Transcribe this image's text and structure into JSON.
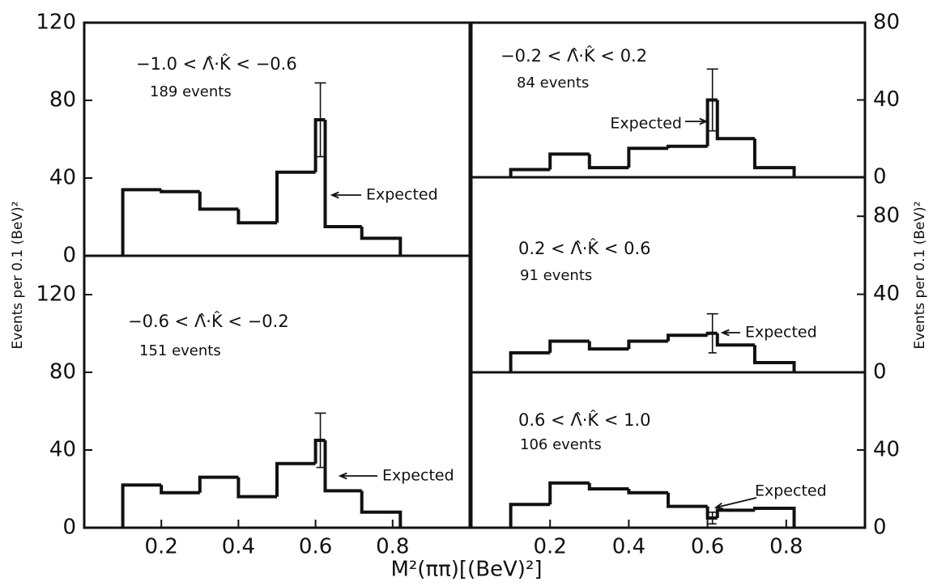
{
  "x_label": "M²(ππ)[(BeV)²]",
  "y_label": "Events per 0.1 (BeV)²",
  "chart_data": [
    {
      "type": "histogram",
      "title": "−1.0 < Λ̂·K̂ < −0.6",
      "subtitle": "189 events",
      "annotation": "Expected",
      "y_axis_side": "left",
      "color": "#111111",
      "bins": [
        0.1,
        0.2,
        0.3,
        0.4,
        0.5,
        0.6,
        0.625,
        0.72,
        0.82
      ],
      "counts": [
        34,
        33,
        24,
        17,
        43,
        70,
        15,
        9
      ],
      "errors": [
        null,
        null,
        null,
        null,
        null,
        19,
        null,
        null
      ],
      "xlim": [
        0,
        1
      ],
      "ylim": [
        0,
        120
      ],
      "yticks": [
        0,
        40,
        80,
        120
      ]
    },
    {
      "type": "histogram",
      "title": "−0.6 < Λ̂·K̂ < −0.2",
      "subtitle": "151 events",
      "annotation": "Expected",
      "y_axis_side": "left",
      "color": "#111111",
      "bins": [
        0.1,
        0.2,
        0.3,
        0.4,
        0.5,
        0.6,
        0.625,
        0.72,
        0.82
      ],
      "counts": [
        22,
        18,
        26,
        16,
        33,
        45,
        19,
        8
      ],
      "errors": [
        null,
        null,
        null,
        null,
        null,
        14,
        null,
        null
      ],
      "xlim": [
        0,
        1
      ],
      "xticks": [
        0.2,
        0.4,
        0.6,
        0.8
      ],
      "ylim": [
        0,
        140
      ],
      "yticks": [
        0,
        40,
        80,
        120
      ]
    },
    {
      "type": "histogram",
      "title": "−0.2 < Λ̂·K̂ < 0.2",
      "subtitle": "84 events",
      "annotation": "Expected",
      "y_axis_side": "right",
      "color": "#111111",
      "bins": [
        0.1,
        0.2,
        0.3,
        0.4,
        0.5,
        0.6,
        0.625,
        0.72,
        0.82
      ],
      "counts": [
        4,
        12,
        5,
        15,
        16,
        40,
        20,
        5
      ],
      "errors": [
        null,
        null,
        null,
        null,
        null,
        16,
        null,
        null
      ],
      "xlim": [
        0,
        1
      ],
      "ylim": [
        0,
        80
      ],
      "yticks": [
        0,
        40,
        80
      ]
    },
    {
      "type": "histogram",
      "title": "0.2 < Λ̂·K̂ < 0.6",
      "subtitle": "91 events",
      "annotation": "Expected",
      "y_axis_side": "right",
      "color": "#111111",
      "bins": [
        0.1,
        0.2,
        0.3,
        0.4,
        0.5,
        0.6,
        0.625,
        0.72,
        0.82
      ],
      "counts": [
        10,
        16,
        12,
        16,
        19,
        20,
        14,
        5
      ],
      "errors": [
        null,
        null,
        null,
        null,
        null,
        10,
        null,
        null
      ],
      "xlim": [
        0,
        1
      ],
      "ylim": [
        0,
        100
      ],
      "yticks": [
        0,
        40,
        80
      ]
    },
    {
      "type": "histogram",
      "title": "0.6 < Λ̂·K̂ < 1.0",
      "subtitle": "106 events",
      "annotation": "Expected",
      "y_axis_side": "right",
      "color": "#111111",
      "bins": [
        0.1,
        0.2,
        0.3,
        0.4,
        0.5,
        0.6,
        0.625,
        0.72,
        0.82
      ],
      "counts": [
        12,
        23,
        20,
        18,
        11,
        5,
        9,
        10
      ],
      "errors": [
        null,
        null,
        null,
        null,
        null,
        3,
        null,
        null
      ],
      "xlim": [
        0,
        1
      ],
      "xticks": [
        0.2,
        0.4,
        0.6,
        0.8
      ],
      "ylim": [
        0,
        80
      ],
      "yticks": [
        0,
        40
      ]
    }
  ]
}
